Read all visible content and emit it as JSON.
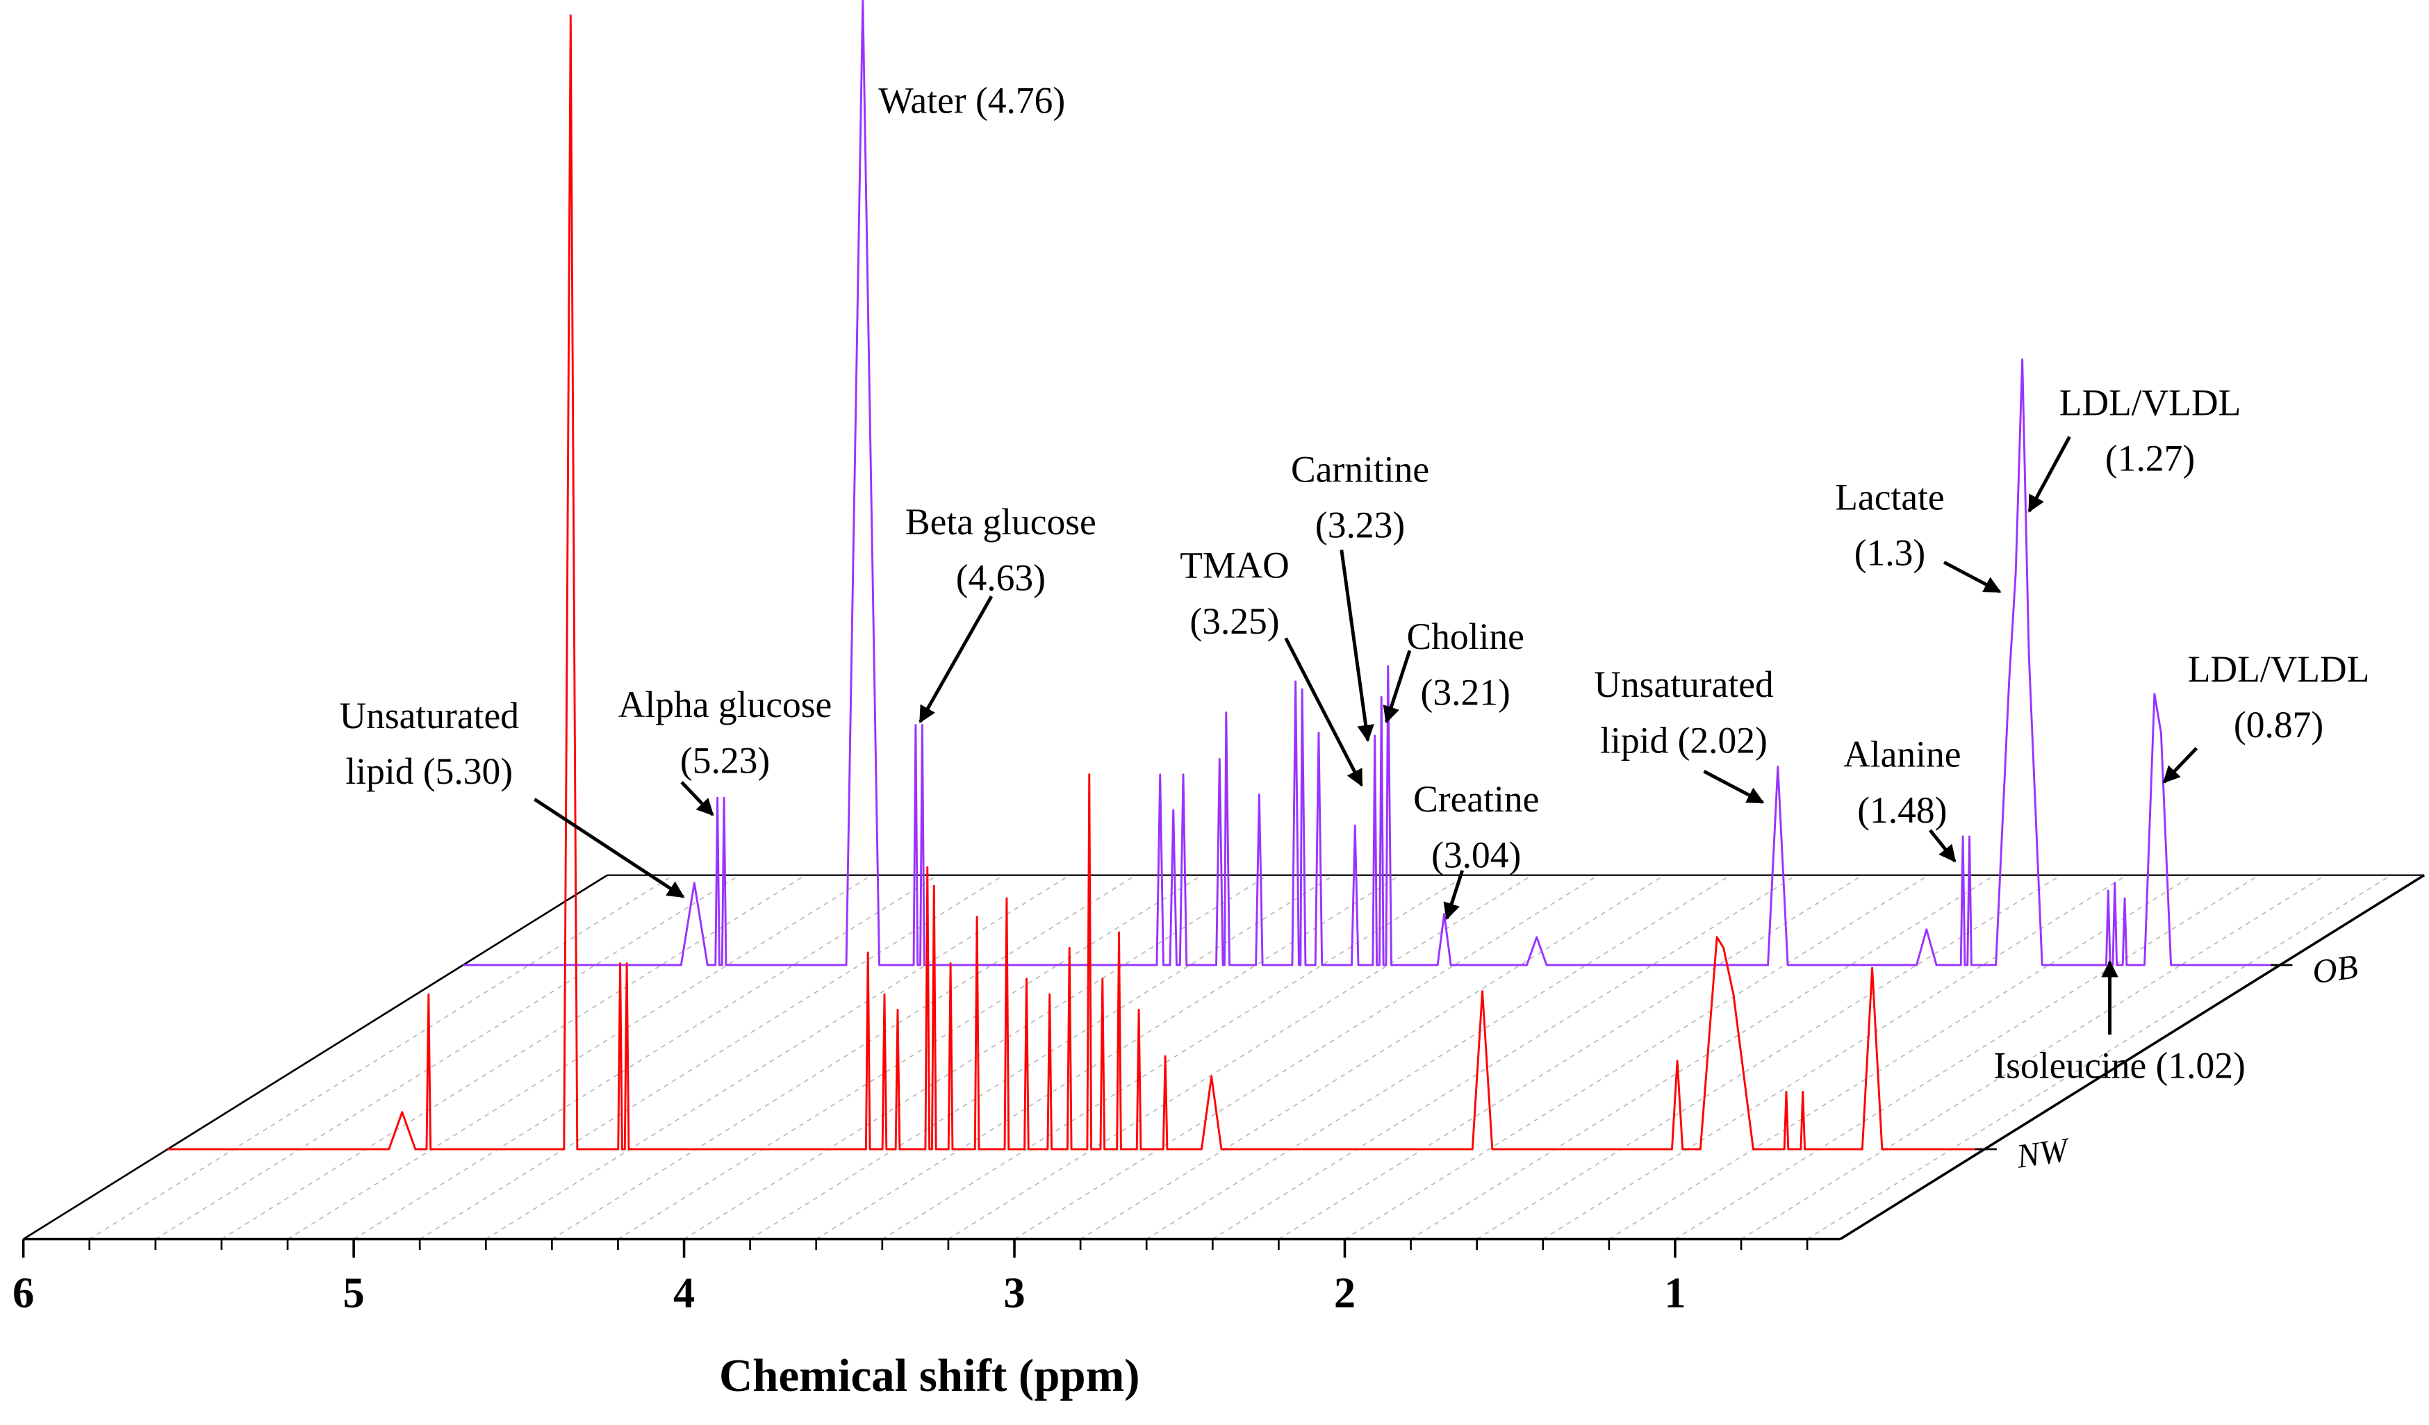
{
  "chart_data": {
    "type": "line",
    "xlabel": "Chemical shift (ppm)",
    "xlim": [
      6,
      0.5
    ],
    "xticks": [
      6,
      5,
      4,
      3,
      2,
      1
    ],
    "series": [
      {
        "name": "OB",
        "color": "#9933ff",
        "x": [
          6.0,
          5.34,
          5.3,
          5.26,
          5.236,
          5.23,
          5.224,
          5.216,
          5.21,
          5.204,
          4.84,
          4.79,
          4.74,
          4.636,
          4.63,
          4.624,
          4.616,
          4.61,
          4.604,
          3.9,
          3.89,
          3.88,
          3.86,
          3.85,
          3.84,
          3.83,
          3.82,
          3.81,
          3.72,
          3.71,
          3.7,
          3.695,
          3.69,
          3.68,
          3.6,
          3.59,
          3.58,
          3.49,
          3.48,
          3.47,
          3.465,
          3.46,
          3.45,
          3.42,
          3.41,
          3.4,
          3.31,
          3.3,
          3.29,
          3.246,
          3.24,
          3.234,
          3.226,
          3.22,
          3.214,
          3.206,
          3.2,
          3.19,
          3.05,
          3.03,
          3.01,
          2.78,
          2.75,
          2.72,
          2.05,
          2.02,
          1.99,
          1.6,
          1.57,
          1.54,
          1.466,
          1.46,
          1.454,
          1.446,
          1.44,
          1.434,
          1.36,
          1.32,
          1.3,
          1.28,
          1.26,
          1.22,
          1.026,
          1.02,
          1.014,
          1.006,
          1.0,
          0.994,
          0.976,
          0.97,
          0.964,
          0.91,
          0.88,
          0.86,
          0.83,
          0.47
        ],
        "values": [
          0,
          0,
          53,
          0,
          0,
          108,
          0,
          0,
          108,
          0,
          0,
          623,
          0,
          0,
          155,
          0,
          0,
          155,
          0,
          0,
          123,
          0,
          0,
          100,
          0,
          0,
          123,
          0,
          0,
          133,
          0,
          0,
          163,
          0,
          0,
          110,
          0,
          0,
          183,
          0,
          0,
          178,
          0,
          0,
          150,
          0,
          0,
          90,
          0,
          0,
          148,
          0,
          0,
          173,
          0,
          0,
          193,
          0,
          0,
          33,
          0,
          0,
          18,
          0,
          0,
          128,
          0,
          0,
          23,
          0,
          0,
          83,
          0,
          0,
          83,
          0,
          0,
          183,
          253,
          391,
          200,
          0,
          0,
          48,
          0,
          0,
          53,
          0,
          0,
          43,
          0,
          0,
          175,
          150,
          0,
          0
        ]
      },
      {
        "name": "NW",
        "color": "#ff0000",
        "x": [
          6.0,
          5.33,
          5.29,
          5.25,
          5.216,
          5.21,
          5.204,
          4.8,
          4.78,
          4.76,
          4.636,
          4.63,
          4.624,
          4.616,
          4.61,
          4.604,
          3.886,
          3.88,
          3.874,
          3.836,
          3.83,
          3.824,
          3.796,
          3.79,
          3.784,
          3.706,
          3.7,
          3.694,
          3.686,
          3.68,
          3.674,
          3.636,
          3.63,
          3.624,
          3.556,
          3.55,
          3.544,
          3.466,
          3.46,
          3.454,
          3.406,
          3.4,
          3.394,
          3.336,
          3.33,
          3.324,
          3.276,
          3.27,
          3.264,
          3.216,
          3.21,
          3.204,
          3.176,
          3.17,
          3.164,
          3.126,
          3.12,
          3.114,
          3.066,
          3.06,
          3.054,
          2.986,
          2.98,
          2.974,
          2.87,
          2.84,
          2.81,
          2.05,
          2.02,
          1.99,
          1.446,
          1.43,
          1.414,
          1.36,
          1.31,
          1.29,
          1.26,
          1.2,
          1.106,
          1.1,
          1.094,
          1.056,
          1.05,
          1.044,
          0.87,
          0.84,
          0.81,
          0.49
        ],
        "values": [
          0,
          0,
          24,
          0,
          0,
          100,
          0,
          0,
          732,
          0,
          0,
          120,
          0,
          0,
          120,
          0,
          0,
          127,
          0,
          0,
          100,
          0,
          0,
          90,
          0,
          0,
          182,
          0,
          0,
          170,
          0,
          0,
          120,
          0,
          0,
          150,
          0,
          0,
          162,
          0,
          0,
          110,
          0,
          0,
          100,
          0,
          0,
          130,
          0,
          0,
          242,
          0,
          0,
          110,
          0,
          0,
          140,
          0,
          0,
          90,
          0,
          0,
          60,
          0,
          0,
          47,
          0,
          0,
          102,
          0,
          0,
          57,
          0,
          0,
          137,
          130,
          100,
          0,
          0,
          37,
          0,
          0,
          37,
          0,
          0,
          117,
          0,
          0
        ]
      }
    ],
    "annotations": [
      [
        "Water (4.76)"
      ],
      [
        "Beta glucose",
        "(4.63)"
      ],
      [
        "Carnitine",
        "(3.23)"
      ],
      [
        "TMAO",
        "(3.25)"
      ],
      [
        "Choline",
        "(3.21)"
      ],
      [
        "Unsaturated",
        "lipid (2.02)"
      ],
      [
        "Creatine",
        "(3.04)"
      ],
      [
        "Alpha glucose",
        "(5.23)"
      ],
      [
        "Unsaturated",
        "lipid (5.30)"
      ],
      [
        "Alanine",
        "(1.48)"
      ],
      [
        "Lactate",
        "(1.3)"
      ],
      [
        "LDL/VLDL",
        "(1.27)"
      ],
      [
        "LDL/VLDL",
        "(0.87)"
      ],
      [
        "Isoleucine (1.02)"
      ]
    ]
  }
}
